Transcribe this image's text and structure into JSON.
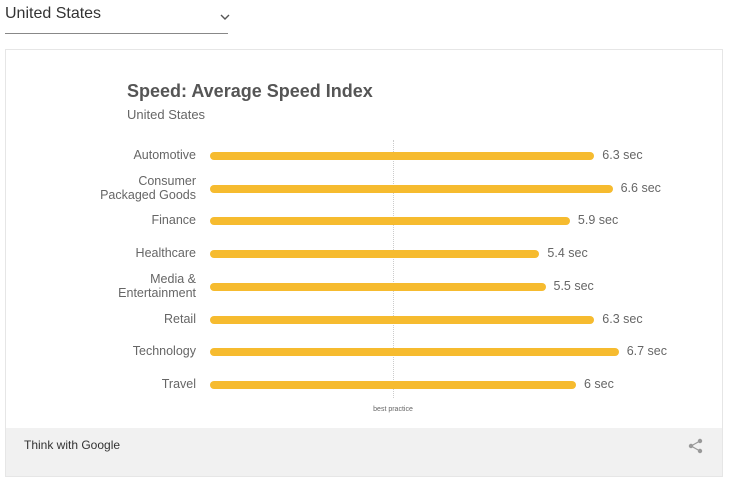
{
  "dropdown": {
    "selected": "United States"
  },
  "chart_data": {
    "type": "bar",
    "orientation": "horizontal",
    "title": "Speed: Average Speed Index",
    "subtitle": "United States",
    "categories": [
      "Automotive",
      "Consumer\nPackaged Goods",
      "Finance",
      "Healthcare",
      "Media &\nEntertainment",
      "Retail",
      "Technology",
      "Travel"
    ],
    "values": [
      6.3,
      6.6,
      5.9,
      5.4,
      5.5,
      6.3,
      6.7,
      6
    ],
    "value_labels": [
      "6.3 sec",
      "6.6 sec",
      "5.9 sec",
      "5.4 sec",
      "5.5 sec",
      "6.3 sec",
      "6.7 sec",
      "6 sec"
    ],
    "color": "#f6bb2f",
    "reference_line": {
      "value": 3,
      "label": "best practice"
    }
  },
  "footer": {
    "brand": "Think with Google"
  }
}
